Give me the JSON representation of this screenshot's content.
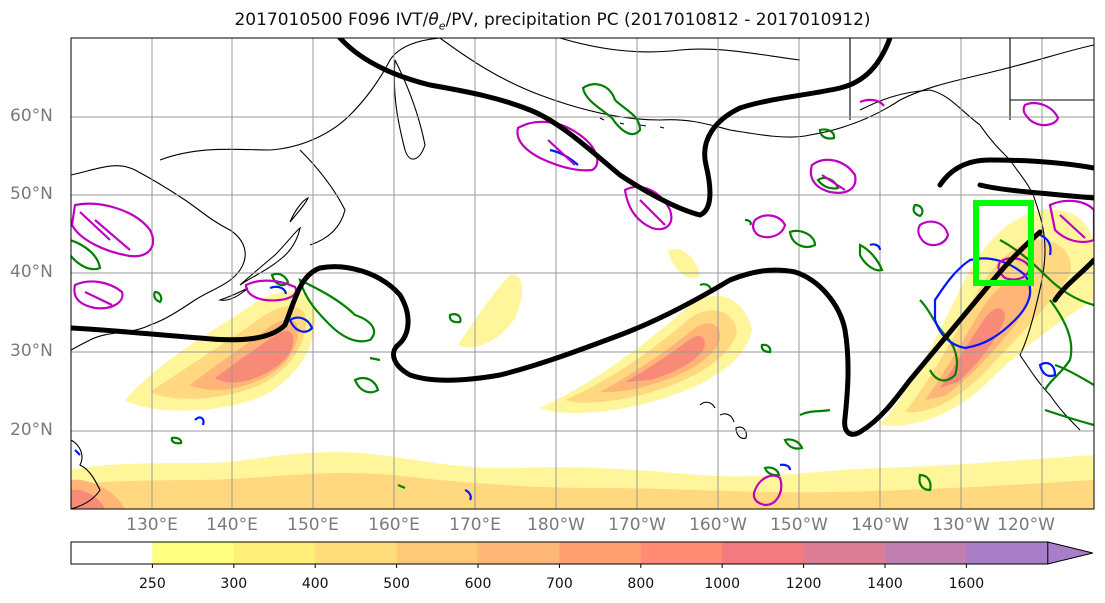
{
  "title": "2017010500 F096 IVT/θe/PV, precipitation PC (2017010812 - 2017010912)",
  "title_parts": {
    "prefix": "2017010500 F096 IVT/",
    "theta": "θ",
    "theta_sub": "e",
    "suffix": "/PV, precipitation PC (2017010812 - 2017010912)"
  },
  "lat_labels": [
    "60°N",
    "50°N",
    "40°N",
    "30°N",
    "20°N"
  ],
  "lon_labels": [
    "130°E",
    "140°E",
    "150°E",
    "160°E",
    "170°E",
    "180°W",
    "170°W",
    "160°W",
    "150°W",
    "140°W",
    "130°W",
    "120°W"
  ],
  "colorbar": {
    "levels": [
      "250",
      "300",
      "400",
      "500",
      "600",
      "700",
      "800",
      "1000",
      "1200",
      "1400",
      "1600"
    ],
    "colors": [
      "#ffffff",
      "#ffff80",
      "#fff07a",
      "#ffdd7a",
      "#ffc978",
      "#ffb877",
      "#ffa072",
      "#ff8b74",
      "#f27a80",
      "#dd7d95",
      "#c07fb0",
      "#a97ec8"
    ]
  },
  "colors": {
    "theta_e_contour": "#000000",
    "pv_green": "#008000",
    "pv_blue": "#0018ff",
    "precip_magenta": "#c000c0",
    "box": "#00ff00",
    "coast": "#000000",
    "grid": "#999999"
  }
}
